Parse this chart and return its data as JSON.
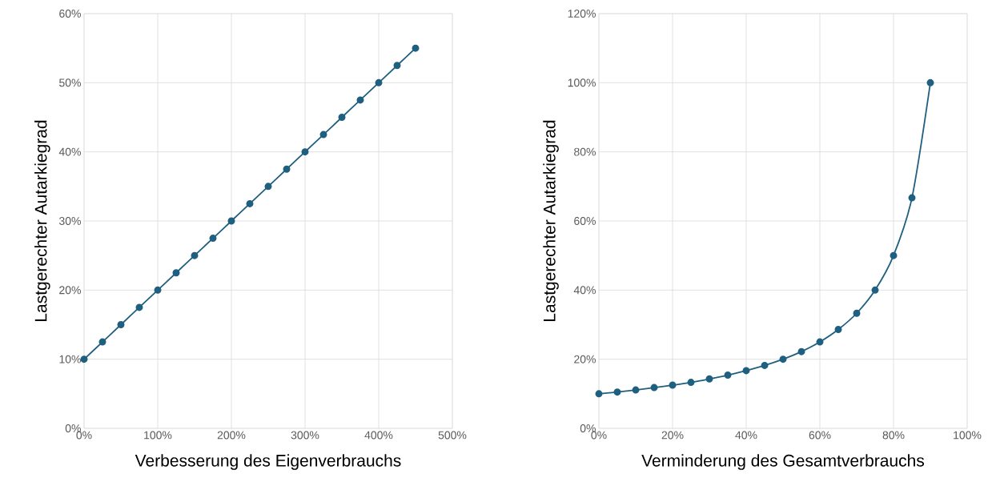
{
  "chart_data": [
    {
      "type": "line",
      "xlabel": "Verbesserung des Eigenverbrauchs",
      "ylabel": "Lastgerechter Autarkiegrad",
      "color": "#1f5f7f",
      "marker": "circle",
      "grid": true,
      "x": [
        0,
        25,
        50,
        75,
        100,
        125,
        150,
        175,
        200,
        225,
        250,
        275,
        300,
        325,
        350,
        375,
        400,
        425,
        450
      ],
      "values": [
        10,
        12.5,
        15,
        17.5,
        20,
        22.5,
        25,
        27.5,
        30,
        32.5,
        35,
        37.5,
        40,
        42.5,
        45,
        47.5,
        50,
        52.5,
        55
      ],
      "xlim": [
        0,
        500
      ],
      "ylim": [
        0,
        60
      ],
      "xticks": [
        {
          "value": 0,
          "label": "0%"
        },
        {
          "value": 100,
          "label": "100%"
        },
        {
          "value": 200,
          "label": "200%"
        },
        {
          "value": 300,
          "label": "300%"
        },
        {
          "value": 400,
          "label": "400%"
        },
        {
          "value": 500,
          "label": "500%"
        }
      ],
      "yticks": [
        {
          "value": 0,
          "label": "0%"
        },
        {
          "value": 10,
          "label": "10%"
        },
        {
          "value": 20,
          "label": "20%"
        },
        {
          "value": 30,
          "label": "30%"
        },
        {
          "value": 40,
          "label": "40%"
        },
        {
          "value": 50,
          "label": "50%"
        },
        {
          "value": 60,
          "label": "60%"
        }
      ]
    },
    {
      "type": "line",
      "xlabel": "Verminderung des Gesamtverbrauchs",
      "ylabel": "Lastgerechter Autarkiegrad",
      "color": "#1f5f7f",
      "marker": "circle",
      "grid": true,
      "x": [
        0,
        5,
        10,
        15,
        20,
        25,
        30,
        35,
        40,
        45,
        50,
        55,
        60,
        65,
        70,
        75,
        80,
        85,
        90
      ],
      "values": [
        10,
        10.5,
        11.1,
        11.8,
        12.5,
        13.3,
        14.3,
        15.4,
        16.7,
        18.2,
        20,
        22.2,
        25,
        28.6,
        33.3,
        40,
        50,
        66.7,
        100
      ],
      "xlim": [
        0,
        100
      ],
      "ylim": [
        0,
        120
      ],
      "xticks": [
        {
          "value": 0,
          "label": "0%"
        },
        {
          "value": 20,
          "label": "20%"
        },
        {
          "value": 40,
          "label": "40%"
        },
        {
          "value": 60,
          "label": "60%"
        },
        {
          "value": 80,
          "label": "80%"
        },
        {
          "value": 100,
          "label": "100%"
        }
      ],
      "yticks": [
        {
          "value": 0,
          "label": "0%"
        },
        {
          "value": 20,
          "label": "20%"
        },
        {
          "value": 40,
          "label": "40%"
        },
        {
          "value": 60,
          "label": "60%"
        },
        {
          "value": 80,
          "label": "80%"
        },
        {
          "value": 100,
          "label": "100%"
        },
        {
          "value": 120,
          "label": "120%"
        }
      ]
    }
  ]
}
